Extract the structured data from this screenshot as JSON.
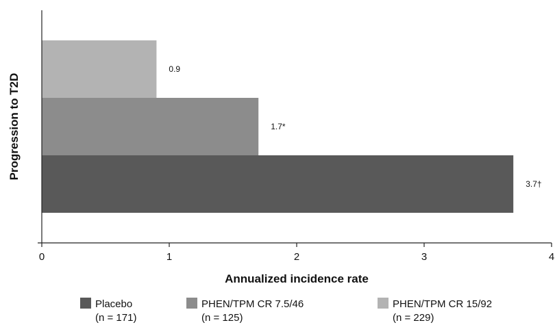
{
  "chart_data": {
    "type": "bar",
    "orientation": "horizontal",
    "title": "",
    "xlabel": "Annualized incidence rate",
    "ylabel": "Progression to T2D",
    "xlim": [
      0,
      4
    ],
    "xticks": [
      0,
      1,
      2,
      3,
      4
    ],
    "grid": false,
    "legend_position": "bottom",
    "series": [
      {
        "name": "Placebo",
        "name_line2": "(n = 171)",
        "value": 3.7,
        "label": "3.7†",
        "color": "#595959"
      },
      {
        "name": "PHEN/TPM CR 7.5/46",
        "name_line2": "(n = 125)",
        "value": 1.7,
        "label": "1.7*",
        "color": "#8c8c8c"
      },
      {
        "name": "PHEN/TPM CR 15/92",
        "name_line2": "(n = 229)",
        "value": 0.9,
        "label": "0.9",
        "color": "#b3b3b3"
      }
    ]
  }
}
